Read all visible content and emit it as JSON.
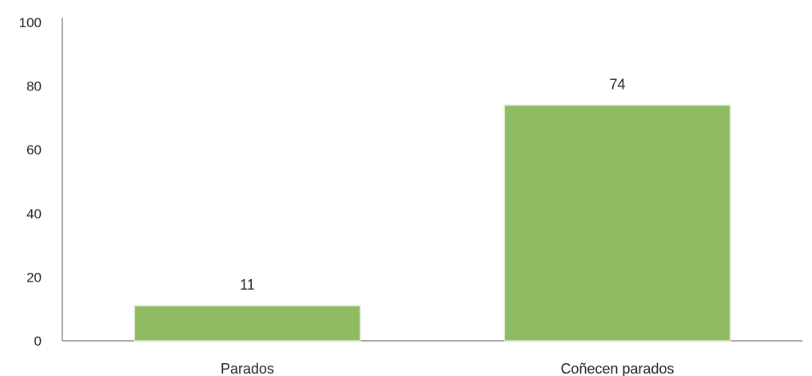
{
  "chart_data": {
    "type": "bar",
    "categories": [
      "Parados",
      "Coñecen parados"
    ],
    "values": [
      11,
      74
    ],
    "data_labels": [
      "11",
      "74"
    ],
    "ylim": [
      0,
      100
    ],
    "yticks": [
      0,
      20,
      40,
      60,
      80,
      100
    ],
    "title": "",
    "xlabel": "",
    "ylabel": "",
    "grid": false,
    "legend": "none",
    "bar_color": "#8fbc62"
  }
}
